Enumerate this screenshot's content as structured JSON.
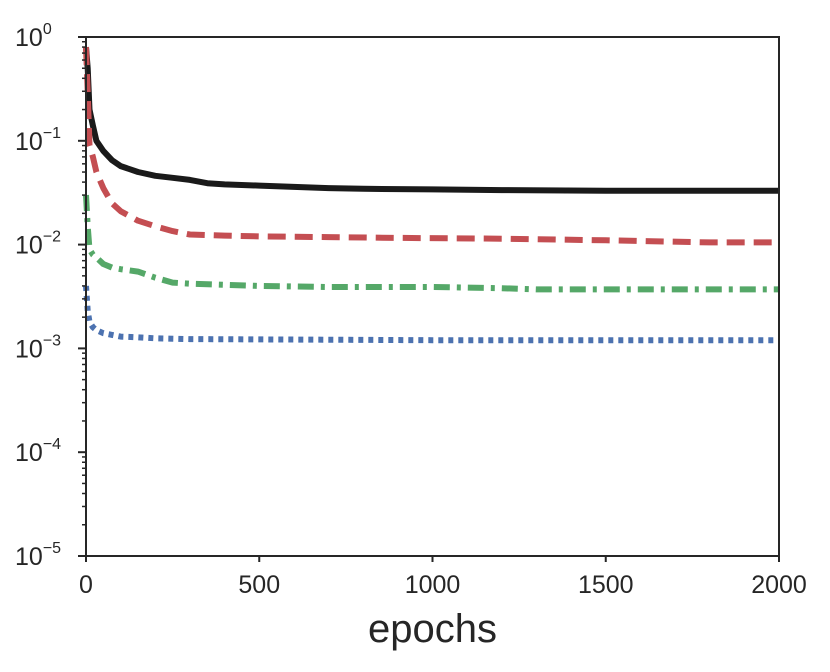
{
  "chart_data": {
    "type": "line",
    "title": "",
    "xlabel": "epochs",
    "ylabel": "",
    "xlim": [
      0,
      2000
    ],
    "ylim": [
      1e-05,
      1
    ],
    "yscale": "log",
    "grid": false,
    "legend": "none",
    "x_ticks": [
      {
        "value": 0,
        "label": "0"
      },
      {
        "value": 500,
        "label": "500"
      },
      {
        "value": 1000,
        "label": "1000"
      },
      {
        "value": 1500,
        "label": "1500"
      },
      {
        "value": 2000,
        "label": "2000"
      }
    ],
    "y_ticks": [
      {
        "value": 1,
        "base": "10",
        "exp": "0"
      },
      {
        "value": 0.1,
        "base": "10",
        "exp": "−1"
      },
      {
        "value": 0.01,
        "base": "10",
        "exp": "−2"
      },
      {
        "value": 0.001,
        "base": "10",
        "exp": "−3"
      },
      {
        "value": 0.0001,
        "base": "10",
        "exp": "−4"
      },
      {
        "value": 1e-05,
        "base": "10",
        "exp": "−5"
      }
    ],
    "series": [
      {
        "color": "#1a1a1a",
        "style": "solid",
        "x": [
          0,
          5,
          10,
          20,
          30,
          50,
          75,
          100,
          150,
          200,
          250,
          300,
          350,
          400,
          500,
          600,
          700,
          800,
          1000,
          1200,
          1500,
          1800,
          2000
        ],
        "y": [
          0.8,
          0.5,
          0.2,
          0.14,
          0.1,
          0.08,
          0.065,
          0.057,
          0.05,
          0.046,
          0.044,
          0.042,
          0.039,
          0.038,
          0.037,
          0.036,
          0.035,
          0.0345,
          0.034,
          0.0335,
          0.033,
          0.033,
          0.033
        ]
      },
      {
        "color": "#c44e52",
        "style": "dashed",
        "x": [
          0,
          5,
          10,
          20,
          30,
          50,
          75,
          100,
          150,
          200,
          250,
          300,
          400,
          500,
          700,
          900,
          1200,
          1500,
          1800,
          2000
        ],
        "y": [
          0.8,
          0.3,
          0.09,
          0.07,
          0.05,
          0.035,
          0.025,
          0.021,
          0.017,
          0.015,
          0.0135,
          0.0125,
          0.0122,
          0.012,
          0.0118,
          0.0116,
          0.0114,
          0.011,
          0.0105,
          0.0105
        ]
      },
      {
        "color": "#55a868",
        "style": "dashdot",
        "x": [
          0,
          5,
          10,
          20,
          30,
          50,
          75,
          100,
          150,
          200,
          250,
          300,
          400,
          500,
          700,
          1000,
          1200,
          1300,
          1500,
          1800,
          2000
        ],
        "y": [
          0.03,
          0.015,
          0.009,
          0.008,
          0.0075,
          0.0065,
          0.006,
          0.0058,
          0.0055,
          0.0048,
          0.0043,
          0.0042,
          0.0041,
          0.004,
          0.0039,
          0.0039,
          0.0038,
          0.0037,
          0.0037,
          0.0037,
          0.0037
        ]
      },
      {
        "color": "#4c72b0",
        "style": "dotted",
        "x": [
          0,
          5,
          10,
          20,
          30,
          50,
          75,
          100,
          150,
          200,
          300,
          500,
          1000,
          1500,
          2000
        ],
        "y": [
          0.004,
          0.0023,
          0.0018,
          0.0016,
          0.0015,
          0.0014,
          0.00135,
          0.0013,
          0.00128,
          0.00125,
          0.00123,
          0.00122,
          0.0012,
          0.0012,
          0.0012
        ]
      }
    ]
  }
}
